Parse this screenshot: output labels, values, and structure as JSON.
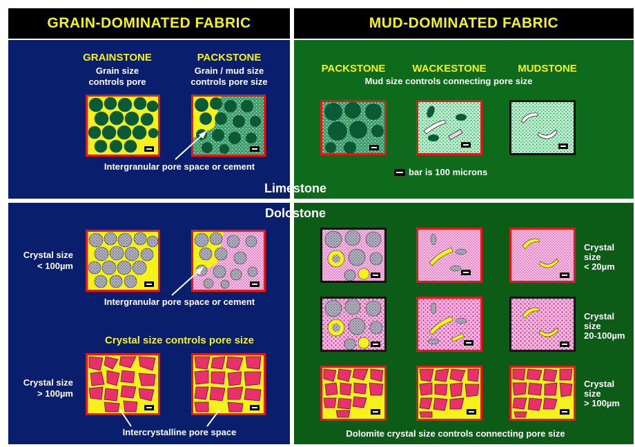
{
  "headers": {
    "left": "GRAIN-DOMINATED FABRIC",
    "right": "MUD-DOMINATED FABRIC"
  },
  "limestone": {
    "section_label": "Limestone",
    "grainstone": {
      "title": "GRAINSTONE",
      "caption": [
        "Grain size",
        "controls pore"
      ]
    },
    "packstone_left": {
      "title": "PACKSTONE",
      "caption": [
        "Grain / mud size",
        "controls pore size"
      ]
    },
    "pore_caption": "Intergranular pore space or cement",
    "packstone_right": {
      "title": "PACKSTONE"
    },
    "wackestone": {
      "title": "WACKESTONE"
    },
    "mudstone": {
      "title": "MUDSTONE"
    },
    "mud_caption": "Mud size controls connecting pore size",
    "scale_caption": "bar is 100 microns"
  },
  "dolostone": {
    "section_label": "Dolostone",
    "left_row1_label": [
      "Crystal size",
      "< 100µm"
    ],
    "pore_caption": "Intergranular pore space or cement",
    "crystal_controls": "Crystal size controls pore size",
    "left_row2_label": [
      "Crystal size",
      "> 100µm"
    ],
    "intercrystalline": "Intercrystalline pore space",
    "right_row1_label": [
      "Crystal",
      "size",
      "< 20µm"
    ],
    "right_row2_label": [
      "Crystal",
      "size",
      "20-100µm"
    ],
    "right_row3_label": [
      "Crystal",
      "size",
      "> 100µm"
    ],
    "bottom_caption": "Dolomite crystal size controls connecting pore size"
  },
  "colors": {
    "blue_panel": "#0a1e6e",
    "green_panel": "#0e6b1b",
    "yellow": "#f5f11a",
    "red_border": "#e0191b",
    "grain_green": "#0b5a35",
    "mud_speckle": "#5fd48a",
    "dolo_pink": "#e84fb0",
    "crystal_pink": "#e8306b"
  }
}
